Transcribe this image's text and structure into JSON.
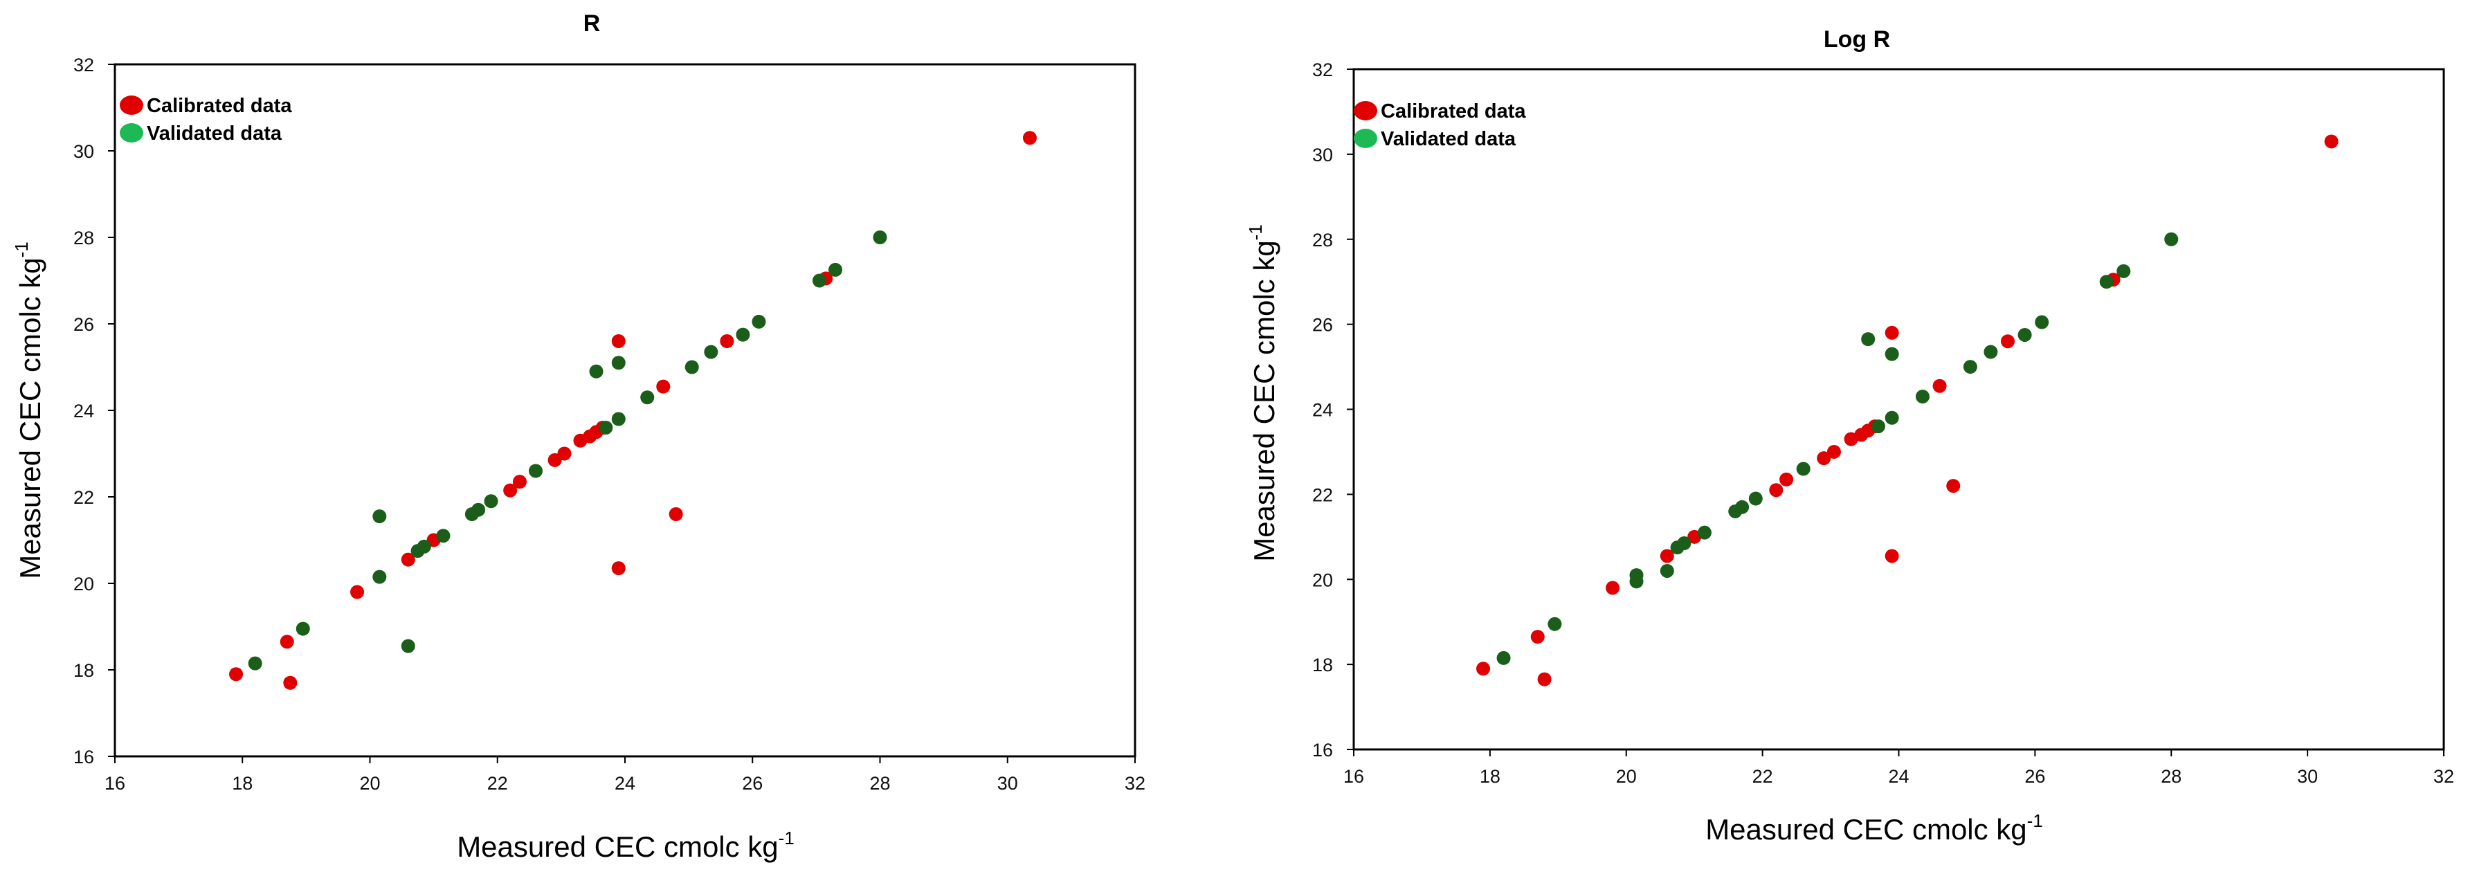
{
  "colors": {
    "calibrated": "#e00000",
    "validated_marker": "#1a5e1a",
    "validated_legend": "#1db954"
  },
  "chart_data": [
    {
      "type": "scatter",
      "title": "R",
      "xlabel": "Measured CEC cmolc kg",
      "xlabel_sup": "-1",
      "ylabel": "Measured CEC cmolc kg",
      "ylabel_sup": "-1",
      "xlim": [
        16,
        32
      ],
      "ylim": [
        16,
        32
      ],
      "xticks": [
        "16",
        "18",
        "20",
        "22",
        "24",
        "26",
        "28",
        "30",
        "32"
      ],
      "yticks": [
        "16",
        "18",
        "20",
        "22",
        "24",
        "26",
        "28",
        "30",
        "32"
      ],
      "grid": false,
      "legend": "top-left",
      "series": [
        {
          "name": "Calibrated data",
          "color": "#e00000",
          "x": [
            17.9,
            18.7,
            18.75,
            19.8,
            20.6,
            21.0,
            22.2,
            22.35,
            22.9,
            23.05,
            23.3,
            23.45,
            23.55,
            23.65,
            23.9,
            23.9,
            24.6,
            24.8,
            25.6,
            27.15,
            30.35
          ],
          "y": [
            17.9,
            18.65,
            17.7,
            19.8,
            20.55,
            21.0,
            22.15,
            22.35,
            22.85,
            23.0,
            23.3,
            23.4,
            23.5,
            23.6,
            25.6,
            20.35,
            24.55,
            21.6,
            25.6,
            27.05,
            30.3
          ]
        },
        {
          "name": "Validated data",
          "color": "#1a5e1a",
          "x": [
            18.2,
            18.95,
            20.15,
            20.15,
            20.6,
            20.75,
            20.85,
            21.15,
            21.6,
            21.7,
            21.9,
            22.6,
            23.55,
            23.7,
            23.9,
            23.9,
            24.35,
            25.05,
            25.35,
            25.85,
            26.1,
            27.05,
            27.3,
            28.0
          ],
          "y": [
            18.15,
            18.95,
            21.55,
            20.15,
            18.55,
            20.75,
            20.85,
            21.1,
            21.6,
            21.7,
            21.9,
            22.6,
            24.9,
            23.6,
            23.8,
            25.1,
            24.3,
            25.0,
            25.35,
            25.75,
            26.05,
            27.0,
            27.25,
            28.0
          ]
        }
      ]
    },
    {
      "type": "scatter",
      "title": "Log R",
      "xlabel": "Measured CEC cmolc kg",
      "xlabel_sup": "-1",
      "ylabel": "Measured CEC cmolc kg",
      "ylabel_sup": "-1",
      "xlim": [
        16,
        32
      ],
      "ylim": [
        16,
        32
      ],
      "xticks": [
        "16",
        "18",
        "20",
        "22",
        "24",
        "26",
        "28",
        "30",
        "32"
      ],
      "yticks": [
        "16",
        "18",
        "20",
        "22",
        "24",
        "26",
        "28",
        "30",
        "32"
      ],
      "grid": false,
      "legend": "top-left",
      "series": [
        {
          "name": "Calibrated data",
          "color": "#e00000",
          "x": [
            17.9,
            18.7,
            18.8,
            19.8,
            20.6,
            21.0,
            22.2,
            22.35,
            22.9,
            23.05,
            23.3,
            23.45,
            23.55,
            23.65,
            23.9,
            23.9,
            24.6,
            24.8,
            25.6,
            27.15,
            30.35
          ],
          "y": [
            17.9,
            18.65,
            17.65,
            19.8,
            20.55,
            21.0,
            22.1,
            22.35,
            22.85,
            23.0,
            23.3,
            23.4,
            23.5,
            23.6,
            25.8,
            20.55,
            24.55,
            22.2,
            25.6,
            27.05,
            30.3
          ]
        },
        {
          "name": "Validated data",
          "color": "#1a5e1a",
          "x": [
            18.2,
            18.95,
            20.15,
            20.15,
            20.6,
            20.75,
            20.85,
            21.15,
            21.6,
            21.7,
            21.9,
            22.6,
            23.55,
            23.7,
            23.9,
            23.9,
            24.35,
            25.05,
            25.35,
            25.85,
            26.1,
            27.05,
            27.3,
            28.0
          ],
          "y": [
            18.15,
            18.95,
            20.1,
            19.95,
            20.2,
            20.75,
            20.85,
            21.1,
            21.6,
            21.7,
            21.9,
            22.6,
            25.65,
            23.6,
            23.8,
            25.3,
            24.3,
            25.0,
            25.35,
            25.75,
            26.05,
            27.0,
            27.25,
            28.0
          ]
        }
      ]
    }
  ]
}
